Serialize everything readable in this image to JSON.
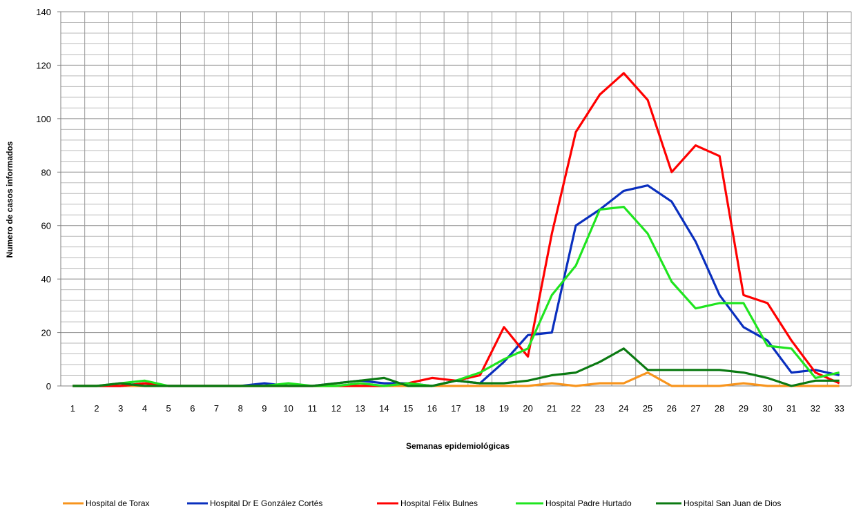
{
  "chart_data": {
    "type": "line",
    "xlabel": "Semanas epidemiológicas",
    "ylabel": "Numero de casos informados",
    "ylim": [
      0,
      140
    ],
    "yticks": [
      0,
      20,
      40,
      60,
      80,
      100,
      120,
      140
    ],
    "grid": true,
    "legend_position": "bottom",
    "x": [
      1,
      2,
      3,
      4,
      5,
      6,
      7,
      8,
      9,
      10,
      11,
      12,
      13,
      14,
      15,
      16,
      17,
      18,
      19,
      20,
      21,
      22,
      23,
      24,
      25,
      26,
      27,
      28,
      29,
      30,
      31,
      32,
      33
    ],
    "series": [
      {
        "name": "Hospital de Torax",
        "color": "#f7941d",
        "values": [
          0,
          0,
          0,
          0,
          0,
          0,
          0,
          0,
          0,
          0,
          0,
          0,
          0,
          0,
          0,
          0,
          0,
          0,
          0,
          0,
          1,
          0,
          1,
          1,
          5,
          0,
          0,
          0,
          1,
          0,
          0,
          0,
          0
        ]
      },
      {
        "name": "Hospital Dr E González Cortés",
        "color": "#0a2fbe",
        "values": [
          0,
          0,
          0,
          1,
          0,
          0,
          0,
          0,
          1,
          0,
          0,
          1,
          2,
          1,
          1,
          0,
          2,
          1,
          9,
          19,
          20,
          60,
          66,
          73,
          75,
          69,
          54,
          34,
          22,
          17,
          5,
          6,
          4
        ]
      },
      {
        "name": "Hospital Félix Bulnes",
        "color": "#ff0000",
        "values": [
          0,
          0,
          0,
          1,
          0,
          0,
          0,
          0,
          0,
          0,
          0,
          0,
          0,
          0,
          1,
          3,
          2,
          4,
          22,
          11,
          57,
          95,
          109,
          117,
          107,
          80,
          90,
          86,
          34,
          31,
          17,
          5,
          1
        ]
      },
      {
        "name": "Hospital Padre Hurtado",
        "color": "#1fe51f",
        "values": [
          0,
          0,
          1,
          2,
          0,
          0,
          0,
          0,
          0,
          1,
          0,
          0,
          1,
          0,
          1,
          0,
          2,
          5,
          10,
          14,
          34,
          45,
          66,
          67,
          57,
          39,
          29,
          31,
          31,
          15,
          14,
          3,
          5
        ]
      },
      {
        "name": "Hospital San Juan de Dios",
        "color": "#0b7a12",
        "values": [
          0,
          0,
          1,
          0,
          0,
          0,
          0,
          0,
          0,
          0,
          0,
          1,
          2,
          3,
          0,
          0,
          2,
          1,
          1,
          2,
          4,
          5,
          9,
          14,
          6,
          6,
          6,
          6,
          5,
          3,
          0,
          2,
          2
        ]
      }
    ]
  }
}
